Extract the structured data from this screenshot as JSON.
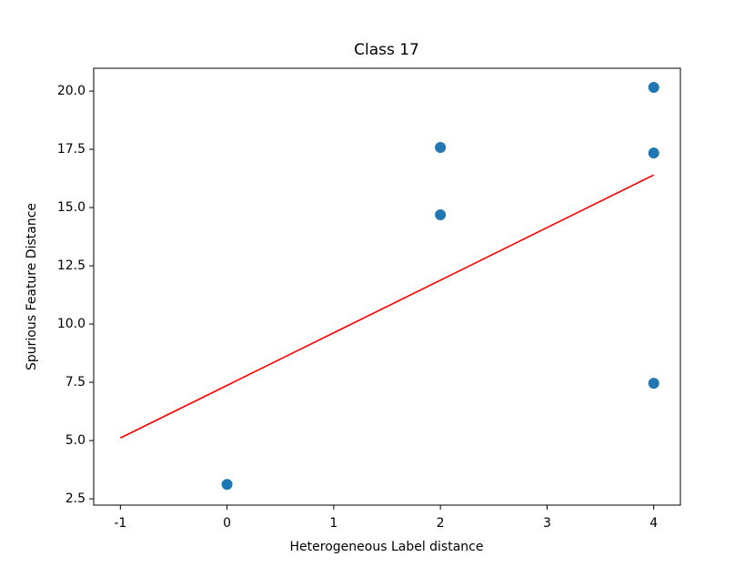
{
  "chart_data": {
    "type": "scatter",
    "title": "Class 17",
    "xlabel": "Heterogeneous Label distance",
    "ylabel": "Spurious Feature Distance",
    "xlim": [
      -1.25,
      4.25
    ],
    "ylim": [
      2.23,
      20.98
    ],
    "xticks": [
      -1,
      0,
      1,
      2,
      3,
      4
    ],
    "yticks": [
      2.5,
      {
        "value": 5,
        "label": "5.0"
      },
      7.5,
      {
        "value": 10,
        "label": "10.0"
      },
      12.5,
      {
        "value": 15,
        "label": "15.0"
      },
      17.5,
      {
        "value": 20,
        "label": "20.0"
      }
    ],
    "series": [
      {
        "type": "scatter",
        "color": "#1f77b4",
        "x": [
          0,
          2,
          2,
          4,
          4,
          4
        ],
        "values": [
          3.12,
          17.58,
          14.69,
          20.16,
          17.34,
          7.46
        ]
      },
      {
        "type": "line",
        "color": "#ff0000",
        "x": [
          -1,
          4
        ],
        "values": [
          5.11,
          16.4
        ]
      }
    ]
  }
}
